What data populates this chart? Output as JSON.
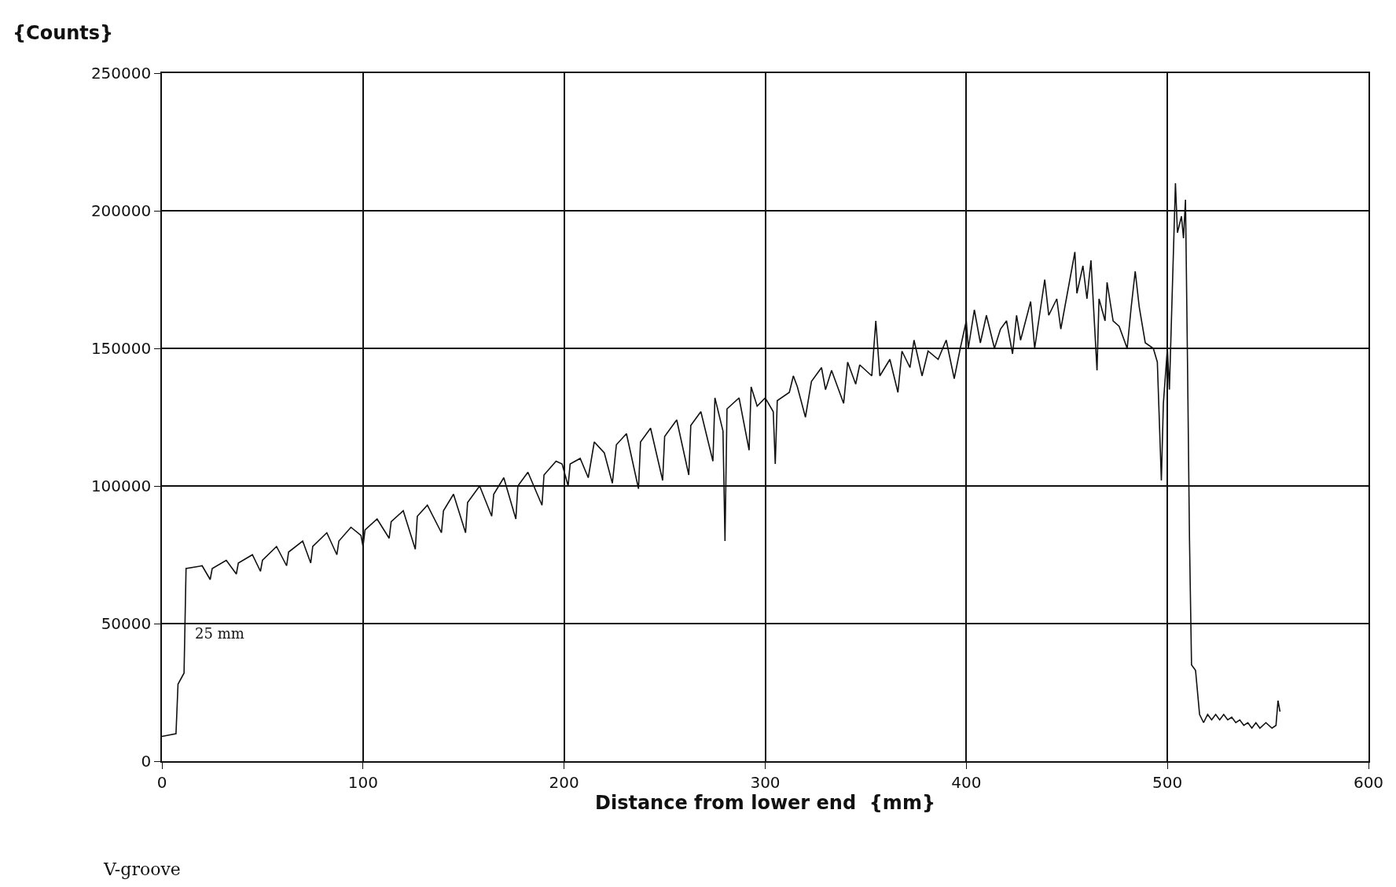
{
  "chart_data": {
    "type": "line",
    "xlabel": "Distance from lower end  {mm}",
    "ylabel": "{Counts}",
    "xlim": [
      0,
      600
    ],
    "xticks": [
      0,
      100,
      200,
      300,
      400,
      500,
      600
    ],
    "ylim": [
      0,
      250000
    ],
    "yticks": [
      0,
      50000,
      100000,
      150000,
      200000,
      250000
    ],
    "grid": true,
    "marker": "none",
    "line_style": "solid",
    "annotations": [
      "25 mm",
      "V-groove"
    ],
    "series": [
      {
        "color": "#111111",
        "x": [
          0,
          7,
          8,
          11,
          12,
          20,
          24,
          25,
          32,
          37,
          38,
          45,
          49,
          50,
          57,
          62,
          63,
          70,
          74,
          75,
          82,
          87,
          88,
          94,
          99,
          100,
          101,
          107,
          113,
          114,
          120,
          126,
          127,
          132,
          139,
          140,
          145,
          151,
          152,
          158,
          164,
          165,
          170,
          176,
          177,
          182,
          189,
          190,
          196,
          199,
          202,
          203,
          208,
          212,
          215,
          220,
          224,
          226,
          231,
          237,
          238,
          243,
          249,
          250,
          256,
          262,
          263,
          268,
          274,
          275,
          279,
          280,
          281,
          287,
          292,
          293,
          296,
          300,
          304,
          305,
          306,
          312,
          314,
          316,
          320,
          323,
          328,
          330,
          333,
          339,
          341,
          345,
          347,
          353,
          355,
          357,
          362,
          366,
          368,
          372,
          374,
          378,
          381,
          386,
          390,
          394,
          397,
          400,
          401,
          404,
          407,
          410,
          414,
          417,
          420,
          423,
          425,
          427,
          432,
          434,
          439,
          441,
          445,
          447,
          451,
          454,
          455,
          458,
          460,
          462,
          465,
          466,
          469,
          470,
          473,
          476,
          480,
          482,
          484,
          486,
          489,
          493,
          495,
          497,
          498,
          500,
          501,
          502,
          504,
          505,
          507,
          508,
          509,
          510,
          511,
          512,
          514,
          516,
          518,
          520,
          522,
          524,
          526,
          528,
          530,
          532,
          534,
          536,
          538,
          540,
          542,
          544,
          546,
          549,
          552,
          554,
          555,
          556
        ],
        "values": [
          9000,
          10000,
          28000,
          32000,
          70000,
          71000,
          66000,
          70000,
          73000,
          68000,
          72000,
          75000,
          69000,
          73000,
          78000,
          71000,
          76000,
          80000,
          72000,
          78000,
          83000,
          75000,
          80000,
          85000,
          82000,
          78000,
          84000,
          88000,
          81000,
          87000,
          91000,
          77000,
          89000,
          93000,
          83000,
          91000,
          97000,
          83000,
          94000,
          100000,
          89000,
          97000,
          103000,
          88000,
          100000,
          105000,
          93000,
          104000,
          109000,
          108000,
          100000,
          108000,
          110000,
          103000,
          116000,
          112000,
          101000,
          115000,
          119000,
          99000,
          116000,
          121000,
          102000,
          118000,
          124000,
          104000,
          122000,
          127000,
          109000,
          132000,
          120000,
          80000,
          128000,
          132000,
          113000,
          136000,
          129000,
          132000,
          127000,
          108000,
          131000,
          134000,
          140000,
          136000,
          125000,
          138000,
          143000,
          135000,
          142000,
          130000,
          145000,
          137000,
          144000,
          140000,
          160000,
          140000,
          146000,
          134000,
          149000,
          143000,
          153000,
          140000,
          149000,
          146000,
          153000,
          139000,
          150000,
          160000,
          150000,
          164000,
          152000,
          162000,
          150000,
          157000,
          160000,
          148000,
          162000,
          153000,
          167000,
          150000,
          175000,
          162000,
          168000,
          157000,
          173000,
          185000,
          170000,
          180000,
          168000,
          182000,
          142000,
          168000,
          160000,
          174000,
          160000,
          158000,
          150000,
          165000,
          178000,
          165000,
          152000,
          150000,
          145000,
          102000,
          130000,
          150000,
          135000,
          160000,
          210000,
          192000,
          198000,
          190000,
          204000,
          145000,
          80000,
          35000,
          33000,
          17000,
          14000,
          17000,
          15000,
          17000,
          15000,
          17000,
          15000,
          16000,
          14000,
          15000,
          13000,
          14000,
          12000,
          14000,
          12000,
          14000,
          12000,
          13000,
          22000,
          18000
        ]
      }
    ]
  }
}
